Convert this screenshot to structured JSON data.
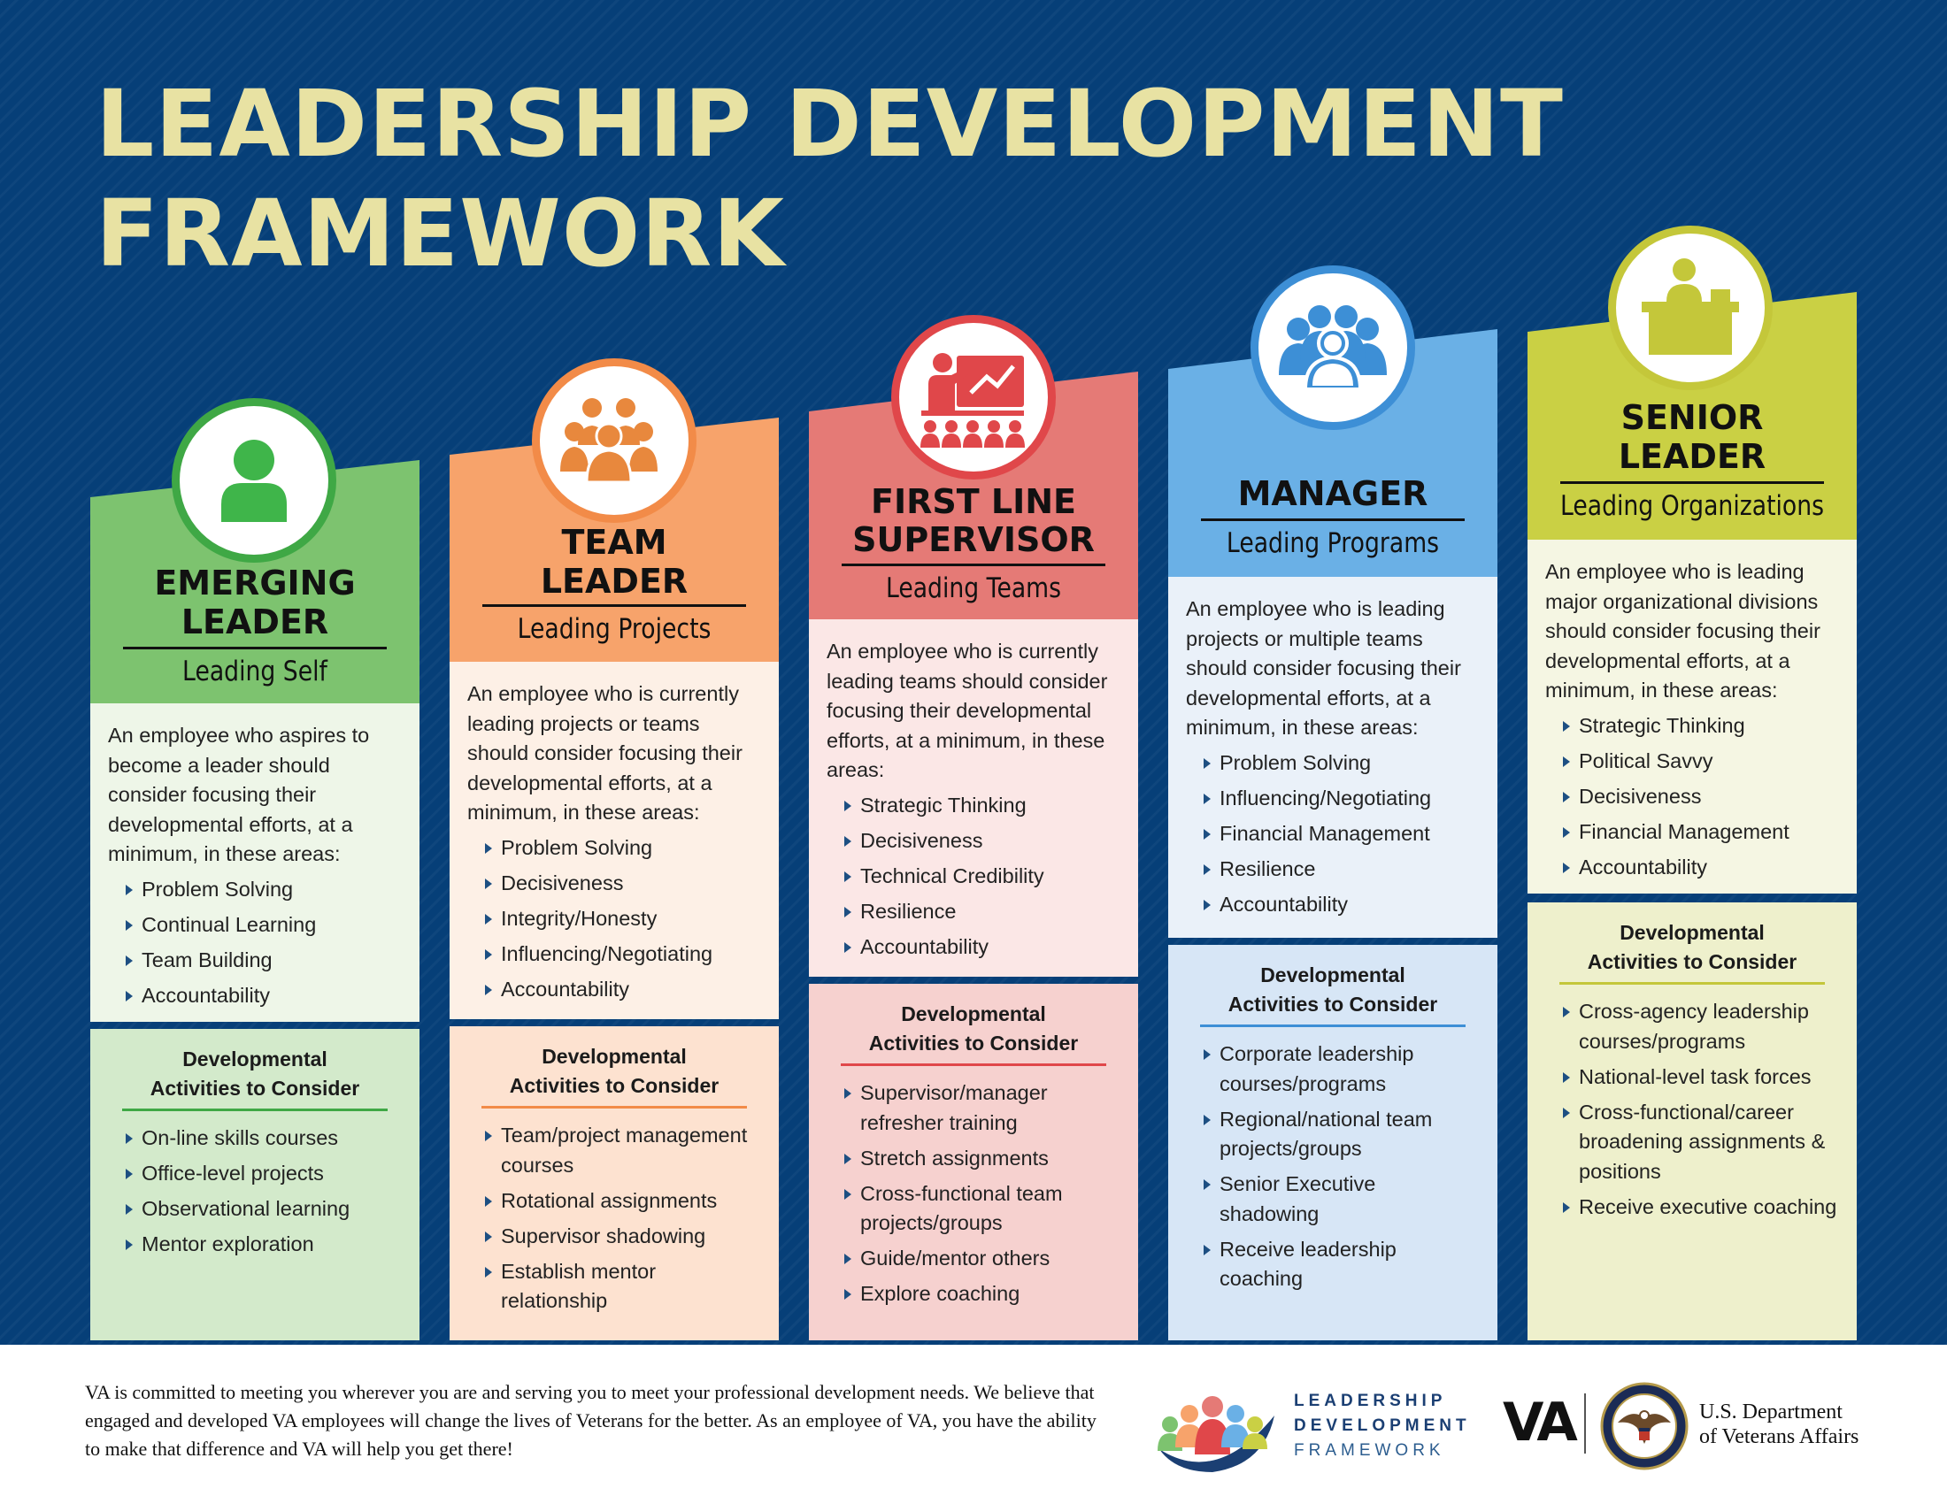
{
  "title_line1": "LEADERSHIP DEVELOPMENT",
  "title_line2": "FRAMEWORK",
  "columns": [
    {
      "name1": "EMERGING",
      "name2": "LEADER",
      "sub": "Leading Self",
      "icon": "person-icon",
      "intro": "An employee who aspires to become a leader should consider focusing their developmental efforts, at a minimum, in these areas:",
      "points": [
        "Problem Solving",
        "Continual Learning",
        "Team Building",
        "Accountability"
      ],
      "acts_h1": "Developmental",
      "acts_h2": "Activities to Consider",
      "acts": [
        "On-line skills courses",
        "Office-level projects",
        "Observational learning",
        "Mentor exploration"
      ]
    },
    {
      "name1": "TEAM",
      "name2": "LEADER",
      "sub": "Leading Projects",
      "icon": "group-icon",
      "intro": "An employee who is currently leading projects or teams should consider focusing their developmental efforts, at a minimum, in these areas:",
      "points": [
        "Problem Solving",
        "Decisiveness",
        "Integrity/Honesty",
        "Influencing/Negotiating",
        "Accountability"
      ],
      "acts_h1": "Developmental",
      "acts_h2": "Activities to Consider",
      "acts": [
        "Team/project management courses",
        "Rotational assignments",
        "Supervisor shadowing",
        "Establish mentor relationship"
      ]
    },
    {
      "name1": "FIRST LINE",
      "name2": "SUPERVISOR",
      "sub": "Leading Teams",
      "icon": "presentation-icon",
      "intro": "An employee who is currently leading teams should consider focusing their developmental efforts, at a minimum, in these areas:",
      "points": [
        "Strategic Thinking",
        "Decisiveness",
        "Technical Credibility",
        "Resilience",
        "Accountability"
      ],
      "acts_h1": "Developmental",
      "acts_h2": "Activities to Consider",
      "acts": [
        "Supervisor/manager refresher training",
        "Stretch assignments",
        "Cross-functional team projects/groups",
        "Guide/mentor others",
        "Explore coaching"
      ]
    },
    {
      "name1": "MANAGER",
      "name2": "",
      "sub": "Leading Programs",
      "icon": "team-outline-icon",
      "intro": "An employee who is leading projects or multiple teams should consider focusing their developmental efforts, at a minimum, in these areas:",
      "points": [
        "Problem Solving",
        "Influencing/Negotiating",
        "Financial Management",
        "Resilience",
        "Accountability"
      ],
      "acts_h1": "Developmental",
      "acts_h2": "Activities to Consider",
      "acts": [
        "Corporate leadership courses/programs",
        "Regional/national team projects/groups",
        "Senior Executive shadowing",
        "Receive leadership coaching"
      ]
    },
    {
      "name1": "SENIOR",
      "name2": "LEADER",
      "sub": "Leading Organizations",
      "icon": "podium-icon",
      "intro": "An employee who is leading major organizational divisions should consider focusing their developmental efforts, at a minimum, in these areas:",
      "points": [
        "Strategic Thinking",
        "Political Savvy",
        "Decisiveness",
        "Financial Management",
        "Accountability"
      ],
      "acts_h1": "Developmental",
      "acts_h2": "Activities to Consider",
      "acts": [
        "Cross-agency leadership courses/programs",
        "National-level task forces",
        "Cross-functional/career broadening assignments & positions",
        "Receive executive coaching"
      ]
    }
  ],
  "colors": {
    "background": "#063f78",
    "title": "#e8e2a3",
    "green": "#7dc36f",
    "orange": "#f7a36b",
    "red": "#e57a76",
    "blue": "#6ab0e6",
    "olive": "#cad044"
  },
  "footer": {
    "text": "VA is committed to meeting you wherever you are and serving you to meet your professional development needs. We believe that engaged and developed VA employees will change the lives of Veterans for the better. As an employee of VA, you have the ability to make that difference and VA will help you get there!",
    "ldf_line1": "LEADERSHIP",
    "ldf_line2": "DEVELOPMENT",
    "ldf_line3": "FRAMEWORK",
    "va": "VA",
    "dept_line1": "U.S. Department",
    "dept_line2": "of Veterans Affairs",
    "seal_icon": "va-seal-icon",
    "logo_icon": "ldf-people-logo-icon"
  }
}
